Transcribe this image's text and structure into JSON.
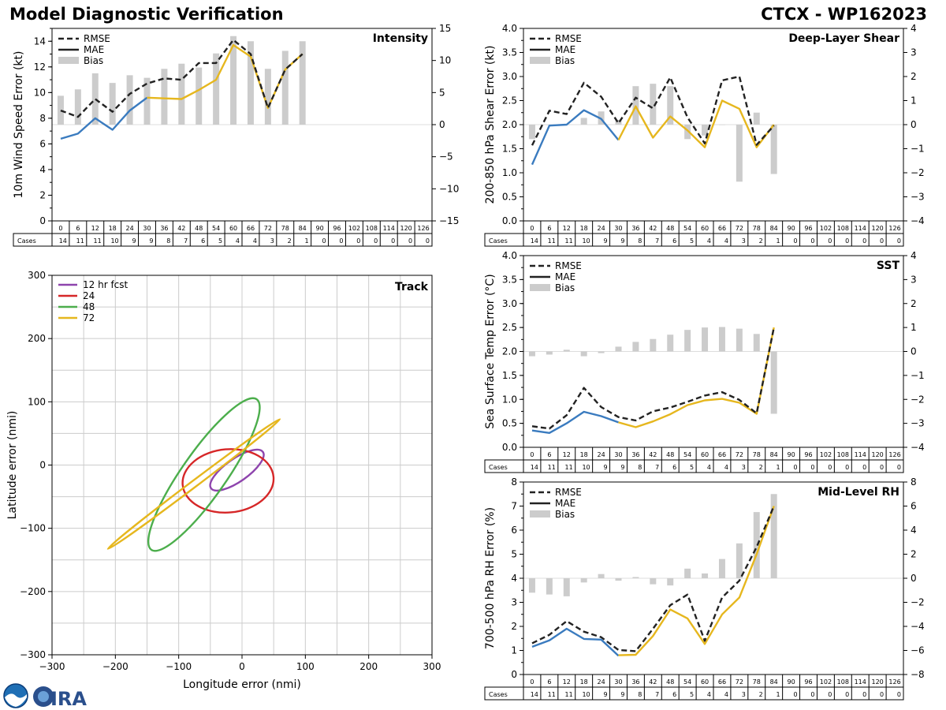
{
  "header": {
    "title": "Model Diagnostic Verification",
    "storm_label": "CTCX - WP162023"
  },
  "logos": {
    "agencies": [
      "NOAA",
      "CIRA"
    ]
  },
  "chart_data": [
    {
      "id": "intensity",
      "type": "line",
      "title": "Intensity",
      "ylabel": "10m Wind Speed Error (kt)",
      "ylim": [
        0,
        15
      ],
      "yticks": [
        0,
        2,
        4,
        6,
        8,
        10,
        12,
        14
      ],
      "y2lim": [
        -15,
        15
      ],
      "y2ticks": [
        -15,
        -10,
        -5,
        0,
        5,
        10,
        15
      ],
      "legend": [
        "RMSE",
        "MAE",
        "Bias"
      ],
      "x": [
        0,
        6,
        12,
        18,
        24,
        30,
        36,
        42,
        48,
        54,
        60,
        66,
        72,
        78,
        84,
        90,
        96,
        102,
        108,
        114,
        120,
        126
      ],
      "cases": [
        14,
        11,
        11,
        10,
        9,
        9,
        8,
        7,
        6,
        5,
        4,
        4,
        3,
        2,
        1,
        0,
        0,
        0,
        0,
        0,
        0,
        0
      ],
      "rmse": [
        8.6,
        8.1,
        9.5,
        8.5,
        9.9,
        10.7,
        11.1,
        11.0,
        12.3,
        12.3,
        14.1,
        13.0,
        8.8,
        11.8,
        13.0
      ],
      "mae_blue": [
        6.4,
        6.8,
        8.0,
        7.1,
        8.6,
        9.6
      ],
      "mae_yellow": [
        null,
        null,
        null,
        null,
        null,
        9.6,
        9.55,
        9.5,
        10.2,
        11.0,
        13.7,
        12.8,
        8.8,
        11.8,
        13.0
      ],
      "bias": [
        4.5,
        5.5,
        8.0,
        6.5,
        7.7,
        7.3,
        8.7,
        9.5,
        8.9,
        11.1,
        13.8,
        13.0,
        8.7,
        11.5,
        13.0
      ]
    },
    {
      "id": "shear",
      "type": "line",
      "title": "Deep-Layer Shear",
      "ylabel": "200-850 hPa Shear Error (kt)",
      "ylim": [
        0,
        4
      ],
      "yticks": [
        0.0,
        0.5,
        1.0,
        1.5,
        2.0,
        2.5,
        3.0,
        3.5,
        4.0
      ],
      "y2lim": [
        -4,
        4
      ],
      "y2ticks": [
        -4,
        -3,
        -2,
        -1,
        0,
        1,
        2,
        3,
        4
      ],
      "legend": [
        "RMSE",
        "MAE",
        "Bias"
      ],
      "x": [
        0,
        6,
        12,
        18,
        24,
        30,
        36,
        42,
        48,
        54,
        60,
        66,
        72,
        78,
        84,
        90,
        96,
        102,
        108,
        114,
        120,
        126
      ],
      "cases": [
        14,
        11,
        11,
        10,
        9,
        9,
        8,
        7,
        6,
        5,
        4,
        4,
        3,
        2,
        1,
        0,
        0,
        0,
        0,
        0,
        0,
        0
      ],
      "rmse": [
        1.57,
        2.29,
        2.22,
        2.87,
        2.58,
        2.03,
        2.56,
        2.34,
        2.98,
        2.15,
        1.61,
        2.92,
        3.0,
        1.58,
        1.98
      ],
      "mae_blue": [
        1.17,
        1.98,
        2.0,
        2.3,
        2.12,
        1.68
      ],
      "mae_yellow": [
        null,
        null,
        null,
        null,
        null,
        1.68,
        2.38,
        1.73,
        2.17,
        1.88,
        1.53,
        2.5,
        2.33,
        1.53,
        2.0
      ],
      "bias": [
        -0.6,
        0.0,
        0.0,
        0.28,
        0.55,
        0.2,
        1.6,
        1.7,
        1.6,
        -0.6,
        -0.45,
        0.0,
        -2.37,
        0.5,
        -2.05
      ]
    },
    {
      "id": "sst",
      "type": "line",
      "title": "SST",
      "ylabel": "Sea Surface Temp Error (°C)",
      "ylim": [
        0,
        4
      ],
      "yticks": [
        0.0,
        0.5,
        1.0,
        1.5,
        2.0,
        2.5,
        3.0,
        3.5,
        4.0
      ],
      "y2lim": [
        -4,
        4
      ],
      "y2ticks": [
        -4,
        -3,
        -2,
        -1,
        0,
        1,
        2,
        3,
        4
      ],
      "legend": [
        "RMSE",
        "MAE",
        "Bias"
      ],
      "x": [
        0,
        6,
        12,
        18,
        24,
        30,
        36,
        42,
        48,
        54,
        60,
        66,
        72,
        78,
        84,
        90,
        96,
        102,
        108,
        114,
        120,
        126
      ],
      "cases": [
        14,
        11,
        11,
        10,
        9,
        9,
        8,
        7,
        6,
        5,
        4,
        4,
        3,
        2,
        1,
        0,
        0,
        0,
        0,
        0,
        0,
        0
      ],
      "rmse": [
        0.44,
        0.39,
        0.67,
        1.24,
        0.84,
        0.63,
        0.56,
        0.75,
        0.83,
        0.95,
        1.08,
        1.15,
        0.99,
        0.71,
        2.5
      ],
      "mae_blue": [
        0.35,
        0.3,
        0.5,
        0.74,
        0.65,
        0.52
      ],
      "mae_yellow": [
        null,
        null,
        null,
        null,
        null,
        0.52,
        0.42,
        0.54,
        0.69,
        0.88,
        0.98,
        1.01,
        0.93,
        0.7,
        2.5
      ],
      "bias": [
        -0.2,
        -0.13,
        0.07,
        -0.2,
        -0.07,
        0.2,
        0.4,
        0.52,
        0.7,
        0.9,
        1.0,
        1.02,
        0.95,
        0.73,
        -2.6
      ]
    },
    {
      "id": "rh",
      "type": "line",
      "title": "Mid-Level RH",
      "ylabel": "700-500 hPa RH Error (%)",
      "ylim": [
        0,
        8
      ],
      "yticks": [
        0,
        1,
        2,
        3,
        4,
        5,
        6,
        7,
        8
      ],
      "y2lim": [
        -8,
        8
      ],
      "y2ticks": [
        -8,
        -6,
        -4,
        -2,
        0,
        2,
        4,
        6,
        8
      ],
      "legend": [
        "RMSE",
        "MAE",
        "Bias"
      ],
      "x": [
        0,
        6,
        12,
        18,
        24,
        30,
        36,
        42,
        48,
        54,
        60,
        66,
        72,
        78,
        84,
        90,
        96,
        102,
        108,
        114,
        120,
        126
      ],
      "cases": [
        14,
        11,
        11,
        10,
        9,
        9,
        8,
        7,
        6,
        5,
        4,
        4,
        3,
        2,
        1,
        0,
        0,
        0,
        0,
        0,
        0,
        0
      ],
      "rmse": [
        1.3,
        1.65,
        2.22,
        1.78,
        1.55,
        1.02,
        0.97,
        1.9,
        2.88,
        3.32,
        1.4,
        3.2,
        3.9,
        5.3,
        7.0
      ],
      "mae_blue": [
        1.15,
        1.42,
        1.9,
        1.48,
        1.45,
        0.78
      ],
      "mae_yellow": [
        null,
        null,
        null,
        null,
        null,
        0.8,
        0.82,
        1.6,
        2.7,
        2.33,
        1.27,
        2.5,
        3.2,
        5.0,
        7.0
      ],
      "bias": [
        -1.2,
        -1.35,
        -1.5,
        -0.35,
        0.35,
        -0.2,
        0.1,
        -0.5,
        -0.6,
        0.8,
        0.4,
        1.6,
        2.9,
        5.5,
        7.0
      ]
    },
    {
      "id": "track",
      "type": "scatter",
      "title": "Track",
      "xlabel": "Longitude error (nmi)",
      "ylabel": "Latitude error (nmi)",
      "xlim": [
        -300,
        300
      ],
      "ylim": [
        -300,
        300
      ],
      "xticks": [
        -300,
        -200,
        -100,
        0,
        100,
        200,
        300
      ],
      "yticks": [
        -300,
        -200,
        -100,
        0,
        100,
        200,
        300
      ],
      "grid_spacing": 50,
      "legend": [
        "12 hr fcst",
        "24",
        "48",
        "72"
      ],
      "ellipses": [
        {
          "label": "12 hr fcst",
          "color": "#8e44ad",
          "cx": -8,
          "cy": -8,
          "a": 50,
          "b": 18,
          "angle": 35
        },
        {
          "label": "24",
          "color": "#d62728",
          "cx": -22,
          "cy": -25,
          "a": 72,
          "b": 50,
          "angle": 5
        },
        {
          "label": "48",
          "color": "#4cae4c",
          "cx": -60,
          "cy": -15,
          "a": 145,
          "b": 35,
          "angle": 55
        },
        {
          "label": "72",
          "color": "#e6b71e",
          "cx": -76,
          "cy": -30,
          "a": 170,
          "b": 5,
          "angle": 37
        }
      ]
    }
  ],
  "style": {
    "rmse_color": "#222222",
    "mae_color": "#3a7bbf",
    "model_color": "#e6b71e",
    "bias_color": "#cccccc",
    "grid_color": "#cccccc"
  }
}
